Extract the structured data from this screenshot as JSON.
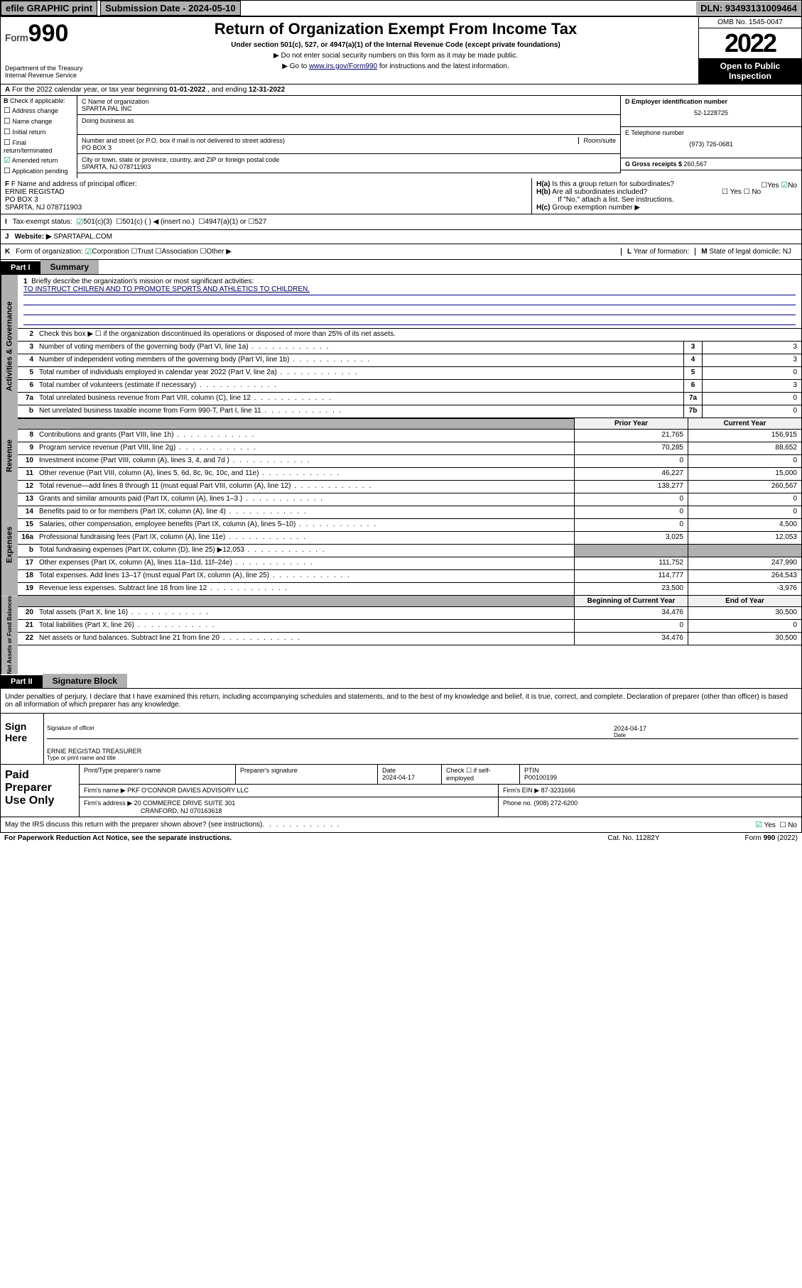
{
  "topbar": {
    "efile": "efile GRAPHIC print",
    "subdate_label": "Submission Date - ",
    "subdate": "2024-05-10",
    "dln_label": "DLN: ",
    "dln": "93493131009464"
  },
  "header": {
    "form_label": "Form",
    "form_num": "990",
    "dept": "Department of the Treasury\nInternal Revenue Service",
    "title": "Return of Organization Exempt From Income Tax",
    "subtitle": "Under section 501(c), 527, or 4947(a)(1) of the Internal Revenue Code (except private foundations)",
    "note1": "▶ Do not enter social security numbers on this form as it may be made public.",
    "note2_pre": "▶ Go to ",
    "note2_link": "www.irs.gov/Form990",
    "note2_post": " for instructions and the latest information.",
    "omb": "OMB No. 1545-0047",
    "year": "2022",
    "open": "Open to Public Inspection"
  },
  "rowA": {
    "text_pre": "For the 2022 calendar year, or tax year beginning ",
    "begin": "01-01-2022",
    "mid": " , and ending ",
    "end": "12-31-2022"
  },
  "colB": {
    "label": "Check if applicable:",
    "items": [
      "Address change",
      "Name change",
      "Initial return",
      "Final return/terminated",
      "Amended return",
      "Application pending"
    ],
    "checked_idx": 4
  },
  "name": {
    "c_label": "C Name of organization",
    "org": "SPARTA PAL INC",
    "dba_label": "Doing business as",
    "street_label": "Number and street (or P.O. box if mail is not delivered to street address)",
    "room_label": "Room/suite",
    "street": "PO BOX 3",
    "city_label": "City or town, state or province, country, and ZIP or foreign postal code",
    "city": "SPARTA, NJ  078711903"
  },
  "right": {
    "d_label": "D Employer identification number",
    "ein": "52-1228725",
    "e_label": "E Telephone number",
    "phone": "(973) 726-0681",
    "g_label": "G Gross receipts $ ",
    "gross": "260,567"
  },
  "f": {
    "label": "F Name and address of principal officer:",
    "name": "ERNIE REGISTAD",
    "addr1": "PO BOX 3",
    "addr2": "SPARTA, NJ  078711903"
  },
  "h": {
    "a": "Is this a group return for subordinates?",
    "b": "Are all subordinates included?",
    "note": "If \"No,\" attach a list. See instructions.",
    "c": "Group exemption number ▶",
    "yes": "Yes",
    "no": "No"
  },
  "i": {
    "label": "Tax-exempt status:",
    "opt1": "501(c)(3)",
    "opt2": "501(c) (  ) ◀ (insert no.)",
    "opt3": "4947(a)(1) or",
    "opt4": "527"
  },
  "j": {
    "label": "Website: ▶",
    "val": "SPARTAPAL.COM"
  },
  "k": {
    "label": "Form of organization:",
    "corp": "Corporation",
    "trust": "Trust",
    "assoc": "Association",
    "other": "Other ▶"
  },
  "l": {
    "label": "Year of formation:"
  },
  "m": {
    "label": "State of legal domicile: ",
    "val": "NJ"
  },
  "part1": {
    "hdr": "Part I",
    "title": "Summary"
  },
  "mission": {
    "q": "Briefly describe the organization's mission or most significant activities:",
    "text": "TO INSTRUCT CHILREN AND TO PROMOTE SPORTS AND ATHLETICS TO CHILDREN."
  },
  "line2": "Check this box ▶ ☐  if the organization discontinued its operations or disposed of more than 25% of its net assets.",
  "lines_gov": [
    {
      "n": "3",
      "d": "Number of voting members of the governing body (Part VI, line 1a)",
      "b": "3",
      "v": "3"
    },
    {
      "n": "4",
      "d": "Number of independent voting members of the governing body (Part VI, line 1b)",
      "b": "4",
      "v": "3"
    },
    {
      "n": "5",
      "d": "Total number of individuals employed in calendar year 2022 (Part V, line 2a)",
      "b": "5",
      "v": "0"
    },
    {
      "n": "6",
      "d": "Total number of volunteers (estimate if necessary)",
      "b": "6",
      "v": "3"
    },
    {
      "n": "7a",
      "d": "Total unrelated business revenue from Part VIII, column (C), line 12",
      "b": "7a",
      "v": "0"
    },
    {
      "n": "b",
      "d": "Net unrelated business taxable income from Form 990-T, Part I, line 11",
      "b": "7b",
      "v": "0"
    }
  ],
  "col_headers": {
    "prior": "Prior Year",
    "current": "Current Year",
    "boy": "Beginning of Current Year",
    "eoy": "End of Year"
  },
  "side_labels": {
    "gov": "Activities & Governance",
    "rev": "Revenue",
    "exp": "Expenses",
    "net": "Net Assets or Fund Balances"
  },
  "revenue": [
    {
      "n": "8",
      "d": "Contributions and grants (Part VIII, line 1h)",
      "p": "21,765",
      "c": "156,915"
    },
    {
      "n": "9",
      "d": "Program service revenue (Part VIII, line 2g)",
      "p": "70,285",
      "c": "88,652"
    },
    {
      "n": "10",
      "d": "Investment income (Part VIII, column (A), lines 3, 4, and 7d )",
      "p": "0",
      "c": "0"
    },
    {
      "n": "11",
      "d": "Other revenue (Part VIII, column (A), lines 5, 6d, 8c, 9c, 10c, and 11e)",
      "p": "46,227",
      "c": "15,000"
    },
    {
      "n": "12",
      "d": "Total revenue—add lines 8 through 11 (must equal Part VIII, column (A), line 12)",
      "p": "138,277",
      "c": "260,567"
    }
  ],
  "expenses": [
    {
      "n": "13",
      "d": "Grants and similar amounts paid (Part IX, column (A), lines 1–3 )",
      "p": "0",
      "c": "0"
    },
    {
      "n": "14",
      "d": "Benefits paid to or for members (Part IX, column (A), line 4)",
      "p": "0",
      "c": "0"
    },
    {
      "n": "15",
      "d": "Salaries, other compensation, employee benefits (Part IX, column (A), lines 5–10)",
      "p": "0",
      "c": "4,500"
    },
    {
      "n": "16a",
      "d": "Professional fundraising fees (Part IX, column (A), line 11e)",
      "p": "3,025",
      "c": "12,053"
    },
    {
      "n": "b",
      "d": "Total fundraising expenses (Part IX, column (D), line 25) ▶12,053",
      "p": "",
      "c": "",
      "grey": true
    },
    {
      "n": "17",
      "d": "Other expenses (Part IX, column (A), lines 11a–11d, 11f–24e)",
      "p": "111,752",
      "c": "247,990"
    },
    {
      "n": "18",
      "d": "Total expenses. Add lines 13–17 (must equal Part IX, column (A), line 25)",
      "p": "114,777",
      "c": "264,543"
    },
    {
      "n": "19",
      "d": "Revenue less expenses. Subtract line 18 from line 12",
      "p": "23,500",
      "c": "-3,976"
    }
  ],
  "netassets": [
    {
      "n": "20",
      "d": "Total assets (Part X, line 16)",
      "p": "34,476",
      "c": "30,500"
    },
    {
      "n": "21",
      "d": "Total liabilities (Part X, line 26)",
      "p": "0",
      "c": "0"
    },
    {
      "n": "22",
      "d": "Net assets or fund balances. Subtract line 21 from line 20",
      "p": "34,476",
      "c": "30,500"
    }
  ],
  "part2": {
    "hdr": "Part II",
    "title": "Signature Block"
  },
  "perjury": "Under penalties of perjury, I declare that I have examined this return, including accompanying schedules and statements, and to the best of my knowledge and belief, it is true, correct, and complete. Declaration of preparer (other than officer) is based on all information of which preparer has any knowledge.",
  "sign": {
    "here": "Sign Here",
    "sig_label": "Signature of officer",
    "date_label": "Date",
    "date": "2024-04-17",
    "name_label": "Type or print name and title",
    "name": "ERNIE REGISTAD  TREASURER"
  },
  "paid": {
    "label": "Paid Preparer Use Only",
    "h1": "Print/Type preparer's name",
    "h2": "Preparer's signature",
    "h3": "Date",
    "h3v": "2024-04-17",
    "h4": "Check ☐ if self-employed",
    "h5": "PTIN",
    "ptin": "P00100199",
    "firm_label": "Firm's name      ▶",
    "firm": "PKF O'CONNOR DAVIES ADVISORY LLC",
    "ein_label": "Firm's EIN ▶",
    "ein": "87-3231666",
    "addr_label": "Firm's address ▶",
    "addr1": "20 COMMERCE DRIVE SUITE 301",
    "addr2": "CRANFORD, NJ  070163618",
    "phone_label": "Phone no. ",
    "phone": "(908) 272-6200"
  },
  "discuss": "May the IRS discuss this return with the preparer shown above? (see instructions)",
  "footer": {
    "left": "For Paperwork Reduction Act Notice, see the separate instructions.",
    "mid": "Cat. No. 11282Y",
    "right": "Form 990 (2022)"
  },
  "colors": {
    "grey": "#b0b0b0",
    "blue": "#006",
    "green_check": "#0a5"
  }
}
